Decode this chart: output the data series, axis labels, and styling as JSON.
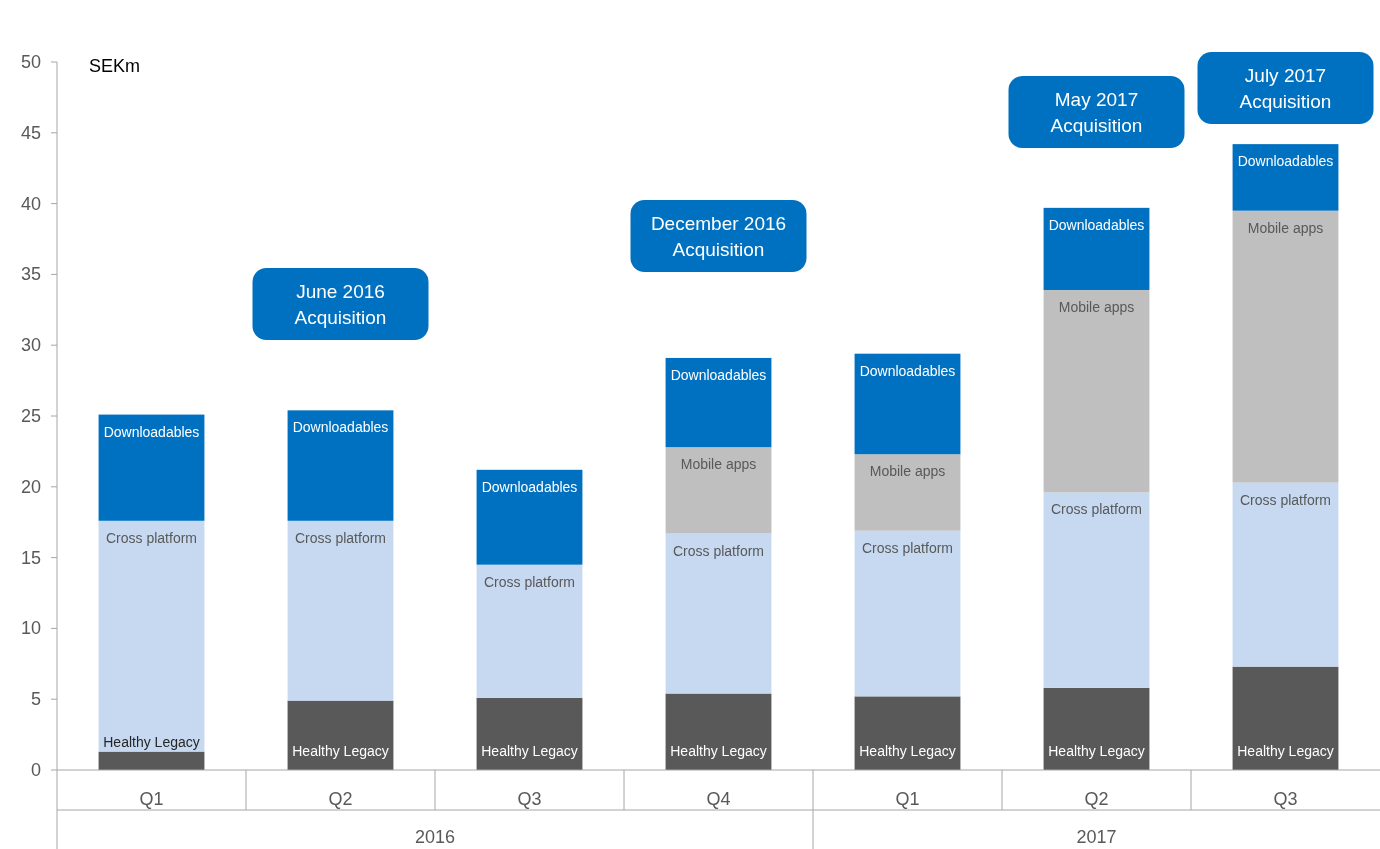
{
  "chart_data": {
    "type": "bar",
    "stacked": true,
    "ylabel": "SEKm",
    "categories": [
      "Q1",
      "Q2",
      "Q3",
      "Q4",
      "Q1",
      "Q2",
      "Q3"
    ],
    "ylim": [
      0,
      50
    ],
    "yticks": [
      0,
      5,
      10,
      15,
      20,
      25,
      30,
      35,
      40,
      45,
      50
    ],
    "series": [
      {
        "name": "Healthy Legacy",
        "color": "#595959",
        "values": [
          1.3,
          4.9,
          5.1,
          5.4,
          5.2,
          5.8,
          7.3
        ]
      },
      {
        "name": "Cross platform",
        "color": "#c6d9f1",
        "values": [
          16.3,
          12.7,
          9.4,
          11.3,
          11.7,
          13.8,
          13.0
        ]
      },
      {
        "name": "Mobile apps",
        "color": "#bfbfbf",
        "values": [
          null,
          null,
          null,
          6.1,
          5.4,
          14.3,
          19.2
        ]
      },
      {
        "name": "Downloadables",
        "color": "#0070c0",
        "values": [
          7.5,
          7.8,
          6.7,
          6.3,
          7.1,
          5.8,
          4.7
        ]
      }
    ],
    "annotations": [
      "2016",
      "2017",
      "June 2016 Acquisition",
      "December 2016 Acquisition",
      "May 2017 Acquisition",
      "July 2017 Acquisition"
    ]
  }
}
